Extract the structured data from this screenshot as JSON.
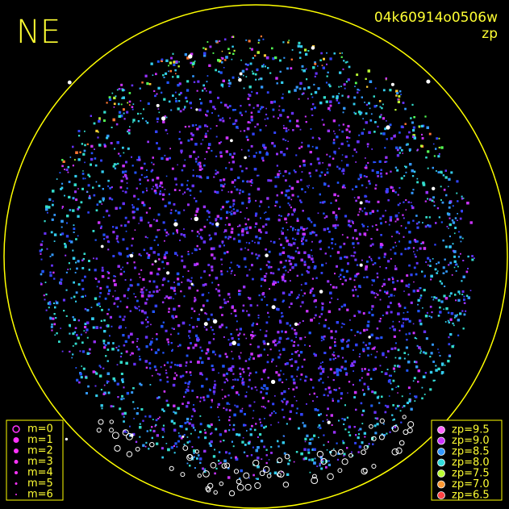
{
  "header": {
    "title": "NE",
    "frame_id": "04k60914o0506w",
    "mode": "zp"
  },
  "legend_m": {
    "color": "#ff33ff",
    "items": [
      "m=0",
      "m=1",
      "m=2",
      "m=3",
      "m=4",
      "m=5",
      "m=6"
    ]
  },
  "legend_zp": {
    "items": [
      {
        "label": "zp=9.5",
        "color": "#ff66ff"
      },
      {
        "label": "zp=9.0",
        "color": "#cc33ff"
      },
      {
        "label": "zp=8.5",
        "color": "#3399ff"
      },
      {
        "label": "zp=8.0",
        "color": "#33dddd"
      },
      {
        "label": "zp=7.5",
        "color": "#bbff33"
      },
      {
        "label": "zp=7.0",
        "color": "#ff9933"
      },
      {
        "label": "zp=6.5",
        "color": "#ff4444"
      }
    ]
  }
}
